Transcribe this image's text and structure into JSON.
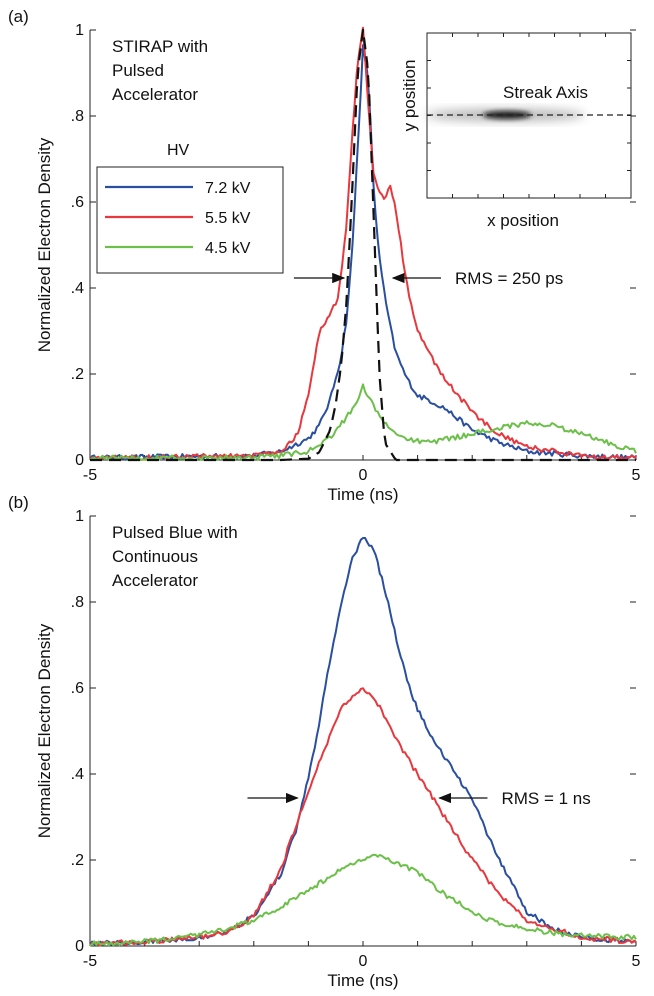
{
  "chart_data": [
    {
      "panel_label": "(a)",
      "type": "line",
      "xlabel": "Time (ns)",
      "ylabel": "Normalized Electron Density",
      "xlim": [
        -5,
        5
      ],
      "ylim": [
        0,
        1
      ],
      "x_ticks": [
        {
          "value": -5,
          "label": "-5"
        },
        {
          "value": 0,
          "label": "0"
        },
        {
          "value": 5,
          "label": "5"
        }
      ],
      "y_ticks": [
        {
          "value": 0,
          "label": "0"
        },
        {
          "value": 0.2,
          "label": ".2"
        },
        {
          "value": 0.4,
          "label": ".4"
        },
        {
          "value": 0.6,
          "label": ".6"
        },
        {
          "value": 0.8,
          "label": ".8"
        },
        {
          "value": 1,
          "label": "1"
        }
      ],
      "annotation_lines": [
        "STIRAP with",
        "Pulsed",
        "Accelerator"
      ],
      "legend_title": "HV",
      "legend_position": "left",
      "rms_label": "RMS = 250 ps",
      "series": [
        {
          "name": "7.2 kV",
          "color": "#2a4fa0",
          "x": [
            -5,
            -2,
            -1.5,
            -1,
            -0.8,
            -0.6,
            -0.4,
            -0.3,
            -0.2,
            -0.1,
            0,
            0.1,
            0.2,
            0.3,
            0.4,
            0.5,
            0.6,
            0.8,
            1,
            1.2,
            1.5,
            2,
            2.5,
            3,
            4,
            5
          ],
          "y": [
            0.005,
            0.01,
            0.02,
            0.05,
            0.08,
            0.14,
            0.24,
            0.33,
            0.48,
            0.72,
            0.96,
            0.88,
            0.62,
            0.47,
            0.38,
            0.31,
            0.25,
            0.19,
            0.15,
            0.14,
            0.12,
            0.07,
            0.04,
            0.02,
            0.01,
            0.005
          ]
        },
        {
          "name": "5.5 kV",
          "color": "#e8383d",
          "x": [
            -5,
            -2,
            -1.5,
            -1.2,
            -1,
            -0.8,
            -0.6,
            -0.45,
            -0.3,
            -0.2,
            -0.1,
            0,
            0.1,
            0.2,
            0.3,
            0.4,
            0.5,
            0.6,
            0.8,
            1,
            1.2,
            1.5,
            2,
            2.5,
            3,
            3.5,
            4,
            5
          ],
          "y": [
            0.005,
            0.01,
            0.02,
            0.06,
            0.15,
            0.3,
            0.34,
            0.38,
            0.55,
            0.75,
            0.92,
            1.0,
            0.82,
            0.66,
            0.62,
            0.61,
            0.64,
            0.58,
            0.41,
            0.3,
            0.25,
            0.19,
            0.11,
            0.06,
            0.03,
            0.02,
            0.01,
            0.005
          ]
        },
        {
          "name": "4.5 kV",
          "color": "#6cc04a",
          "x": [
            -5,
            -2,
            -1.5,
            -1,
            -0.6,
            -0.3,
            -0.1,
            0,
            0.1,
            0.3,
            0.5,
            0.8,
            1.2,
            1.6,
            2,
            2.5,
            3,
            3.5,
            4,
            4.5,
            5
          ],
          "y": [
            0.005,
            0.005,
            0.01,
            0.02,
            0.05,
            0.1,
            0.14,
            0.17,
            0.15,
            0.1,
            0.07,
            0.05,
            0.04,
            0.05,
            0.06,
            0.075,
            0.085,
            0.08,
            0.06,
            0.04,
            0.02
          ]
        },
        {
          "name": "",
          "color": "#111111",
          "style": "dashed",
          "x": [
            -5,
            -1.5,
            -1.0,
            -0.8,
            -0.6,
            -0.5,
            -0.4,
            -0.3,
            -0.2,
            -0.1,
            0,
            0.1,
            0.2,
            0.3,
            0.4,
            0.6,
            1,
            2,
            5
          ],
          "y": [
            0,
            0,
            0.003,
            0.018,
            0.07,
            0.13,
            0.22,
            0.37,
            0.62,
            0.9,
            1.0,
            0.9,
            0.55,
            0.2,
            0.04,
            0.0,
            0,
            0,
            0
          ]
        }
      ],
      "inset": {
        "xlabel": "x position",
        "ylabel": "y position",
        "annotation": "Streak Axis"
      }
    },
    {
      "panel_label": "(b)",
      "type": "line",
      "xlabel": "Time (ns)",
      "ylabel": "Normalized Electron Density",
      "xlim": [
        -5,
        5
      ],
      "ylim": [
        0,
        1
      ],
      "x_ticks": [
        {
          "value": -5,
          "label": "-5"
        },
        {
          "value": 0,
          "label": "0"
        },
        {
          "value": 5,
          "label": "5"
        }
      ],
      "y_ticks": [
        {
          "value": 0,
          "label": "0"
        },
        {
          "value": 0.2,
          "label": ".2"
        },
        {
          "value": 0.4,
          "label": ".4"
        },
        {
          "value": 0.6,
          "label": ".6"
        },
        {
          "value": 0.8,
          "label": ".8"
        },
        {
          "value": 1,
          "label": "1"
        }
      ],
      "annotation_lines": [
        "Pulsed Blue with",
        "Continuous",
        "Accelerator"
      ],
      "rms_label": "RMS = 1 ns",
      "series": [
        {
          "name": "7.2 kV",
          "color": "#2a4fa0",
          "x": [
            -5,
            -4,
            -3,
            -2.5,
            -2,
            -1.5,
            -1.2,
            -1,
            -0.8,
            -0.6,
            -0.4,
            -0.2,
            0,
            0.2,
            0.4,
            0.6,
            0.8,
            1,
            1.2,
            1.5,
            2,
            2.5,
            3,
            3.5,
            4,
            5
          ],
          "y": [
            0.005,
            0.01,
            0.02,
            0.03,
            0.07,
            0.17,
            0.28,
            0.39,
            0.52,
            0.67,
            0.8,
            0.9,
            0.95,
            0.92,
            0.83,
            0.72,
            0.62,
            0.55,
            0.5,
            0.44,
            0.34,
            0.2,
            0.08,
            0.04,
            0.02,
            0.01
          ]
        },
        {
          "name": "5.5 kV",
          "color": "#e8383d",
          "x": [
            -5,
            -4,
            -3,
            -2.5,
            -2,
            -1.5,
            -1.2,
            -1,
            -0.8,
            -0.6,
            -0.4,
            -0.2,
            0,
            0.2,
            0.4,
            0.6,
            0.8,
            1,
            1.2,
            1.5,
            2,
            2.5,
            3,
            3.5,
            4,
            5
          ],
          "y": [
            0.005,
            0.01,
            0.02,
            0.03,
            0.07,
            0.18,
            0.29,
            0.36,
            0.43,
            0.49,
            0.55,
            0.58,
            0.6,
            0.58,
            0.53,
            0.48,
            0.44,
            0.4,
            0.36,
            0.3,
            0.2,
            0.12,
            0.06,
            0.04,
            0.02,
            0.01
          ]
        },
        {
          "name": "4.5 kV",
          "color": "#6cc04a",
          "x": [
            -5,
            -4,
            -3,
            -2.5,
            -2,
            -1.5,
            -1,
            -0.5,
            -0.2,
            0,
            0.2,
            0.5,
            1,
            1.5,
            2,
            2.5,
            3,
            3.5,
            4,
            5
          ],
          "y": [
            0.005,
            0.01,
            0.025,
            0.04,
            0.06,
            0.09,
            0.13,
            0.17,
            0.19,
            0.2,
            0.21,
            0.2,
            0.17,
            0.12,
            0.08,
            0.05,
            0.04,
            0.03,
            0.025,
            0.02
          ]
        }
      ]
    }
  ]
}
